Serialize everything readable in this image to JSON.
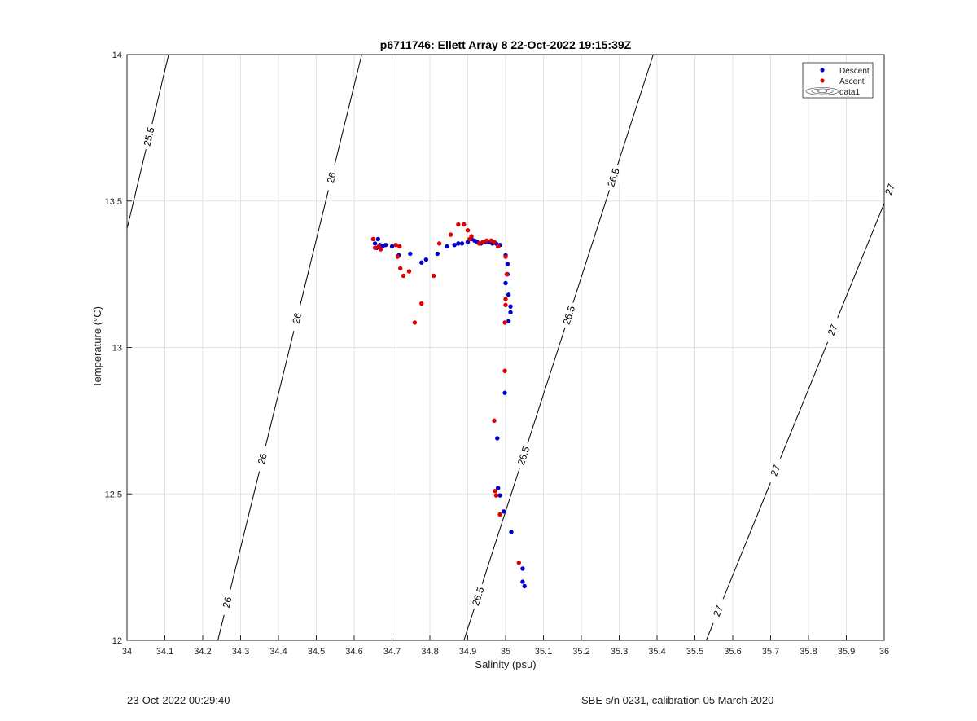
{
  "chart_data": {
    "type": "scatter",
    "title": "p6711746: Ellett Array 8 22-Oct-2022 19:15:39Z",
    "xlabel": "Salinity (psu)",
    "ylabel": "Temperature (°C)",
    "xlim": [
      34,
      36
    ],
    "ylim": [
      12,
      14
    ],
    "x_ticks": [
      "34",
      "34.1",
      "34.2",
      "34.3",
      "34.4",
      "34.5",
      "34.6",
      "34.7",
      "34.8",
      "34.9",
      "35",
      "35.1",
      "35.2",
      "35.3",
      "35.4",
      "35.5",
      "35.6",
      "35.7",
      "35.8",
      "35.9",
      "36"
    ],
    "y_ticks": [
      "12",
      "12.5",
      "13",
      "13.5",
      "14"
    ],
    "grid": true,
    "legend_position": "top-right",
    "legend": [
      "Descent",
      "Ascent",
      "data1"
    ],
    "series": [
      {
        "name": "Descent",
        "color": "#0000cc",
        "points": [
          [
            34.655,
            13.355
          ],
          [
            34.66,
            13.34
          ],
          [
            34.663,
            13.37
          ],
          [
            34.668,
            13.35
          ],
          [
            34.675,
            13.345
          ],
          [
            34.683,
            13.35
          ],
          [
            34.7,
            13.345
          ],
          [
            34.718,
            13.315
          ],
          [
            34.748,
            13.32
          ],
          [
            34.778,
            13.29
          ],
          [
            34.79,
            13.3
          ],
          [
            34.82,
            13.32
          ],
          [
            34.845,
            13.345
          ],
          [
            34.865,
            13.35
          ],
          [
            34.875,
            13.355
          ],
          [
            34.885,
            13.355
          ],
          [
            34.9,
            13.36
          ],
          [
            34.91,
            13.37
          ],
          [
            34.918,
            13.365
          ],
          [
            34.925,
            13.36
          ],
          [
            34.935,
            13.355
          ],
          [
            34.945,
            13.36
          ],
          [
            34.955,
            13.36
          ],
          [
            34.965,
            13.355
          ],
          [
            34.975,
            13.355
          ],
          [
            34.985,
            13.35
          ],
          [
            35.0,
            13.315
          ],
          [
            35.005,
            13.285
          ],
          [
            35.005,
            13.25
          ],
          [
            35.0,
            13.22
          ],
          [
            35.008,
            13.18
          ],
          [
            35.013,
            13.14
          ],
          [
            35.013,
            13.12
          ],
          [
            35.008,
            13.09
          ],
          [
            34.998,
            12.845
          ],
          [
            34.978,
            12.69
          ],
          [
            34.98,
            12.52
          ],
          [
            34.985,
            12.495
          ],
          [
            34.995,
            12.44
          ],
          [
            35.015,
            12.37
          ],
          [
            35.045,
            12.245
          ],
          [
            35.045,
            12.2
          ],
          [
            35.05,
            12.185
          ]
        ]
      },
      {
        "name": "Ascent",
        "color": "#dd0000",
        "points": [
          [
            34.65,
            13.37
          ],
          [
            34.655,
            13.34
          ],
          [
            34.665,
            13.345
          ],
          [
            34.67,
            13.335
          ],
          [
            34.71,
            13.35
          ],
          [
            34.715,
            13.31
          ],
          [
            34.72,
            13.345
          ],
          [
            34.722,
            13.27
          ],
          [
            34.73,
            13.245
          ],
          [
            34.745,
            13.26
          ],
          [
            34.76,
            13.085
          ],
          [
            34.778,
            13.15
          ],
          [
            34.81,
            13.245
          ],
          [
            34.825,
            13.355
          ],
          [
            34.855,
            13.385
          ],
          [
            34.875,
            13.42
          ],
          [
            34.89,
            13.42
          ],
          [
            34.9,
            13.4
          ],
          [
            34.905,
            13.37
          ],
          [
            34.91,
            13.38
          ],
          [
            34.93,
            13.355
          ],
          [
            34.94,
            13.36
          ],
          [
            34.95,
            13.365
          ],
          [
            34.962,
            13.365
          ],
          [
            34.97,
            13.36
          ],
          [
            34.98,
            13.345
          ],
          [
            35.0,
            13.31
          ],
          [
            35.003,
            13.25
          ],
          [
            35.0,
            13.165
          ],
          [
            35.0,
            13.145
          ],
          [
            34.998,
            13.085
          ],
          [
            34.998,
            12.92
          ],
          [
            34.97,
            12.75
          ],
          [
            34.972,
            12.51
          ],
          [
            34.975,
            12.495
          ],
          [
            34.985,
            12.43
          ],
          [
            35.035,
            12.265
          ]
        ]
      }
    ],
    "contours": [
      {
        "level": "25.5",
        "x_at_ymin": 33.74,
        "x_at_ymax": 34.11,
        "labels_y": [
          13.72
        ]
      },
      {
        "level": "26",
        "x_at_ymin": 34.24,
        "x_at_ymax": 34.62,
        "labels_y": [
          12.13,
          12.62,
          13.1,
          13.58
        ]
      },
      {
        "level": "26.5",
        "x_at_ymin": 34.89,
        "x_at_ymax": 35.39,
        "labels_y": [
          12.15,
          12.63,
          13.11,
          13.58
        ]
      },
      {
        "level": "27",
        "x_at_ymin": 35.53,
        "x_at_ymax": 36.16,
        "labels_y": [
          12.1,
          12.58,
          13.06,
          13.54
        ]
      }
    ]
  },
  "footer": {
    "timestamp": "23-Oct-2022 00:29:40",
    "calibration": "SBE s/n 0231, calibration 05 March 2020"
  }
}
